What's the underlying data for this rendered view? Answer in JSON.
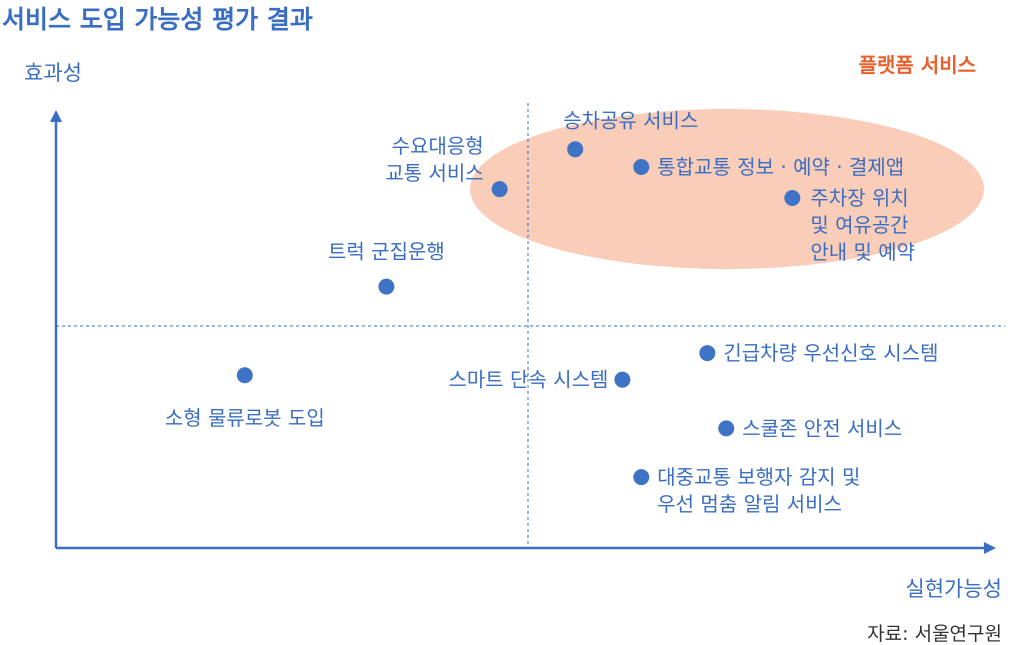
{
  "chart_data": {
    "type": "scatter",
    "title": "서비스 도입 가능성 평가 결과",
    "xlabel": "실현가능성",
    "ylabel": "효과성",
    "group_label": "플랫폼 서비스",
    "source": "자료: 서울연구원",
    "grid": false,
    "colors": {
      "accent": "#3a6ec4",
      "point": "#3f73c6",
      "group_fill": "#f9cdb8",
      "group_label": "#e8612c"
    },
    "points": [
      {
        "label": [
          "수요대응형",
          "교통 서비스"
        ],
        "x": 4.7,
        "y": 8.1,
        "group": true
      },
      {
        "label": [
          "승차공유 서비스"
        ],
        "x": 5.5,
        "y": 9.0,
        "group": true
      },
      {
        "label": [
          "통합교통 정보 · 예약 · 결제앱"
        ],
        "x": 6.2,
        "y": 8.6,
        "group": true
      },
      {
        "label": [
          "주차장 위치",
          "및 여유공간",
          "안내 및 예약"
        ],
        "x": 7.8,
        "y": 7.9,
        "group": true
      },
      {
        "label": [
          "트럭 군집운행"
        ],
        "x": 3.5,
        "y": 5.9,
        "group": false
      },
      {
        "label": [
          "소형 물류로봇 도입"
        ],
        "x": 2.0,
        "y": 3.9,
        "group": false
      },
      {
        "label": [
          "스마트 단속 시스템"
        ],
        "x": 6.0,
        "y": 3.8,
        "group": false
      },
      {
        "label": [
          "긴급차량 우선신호 시스템"
        ],
        "x": 6.9,
        "y": 4.4,
        "group": false
      },
      {
        "label": [
          "스쿨존 안전 서비스"
        ],
        "x": 7.1,
        "y": 2.7,
        "group": false
      },
      {
        "label": [
          "대중교통 보행자 감지 및",
          "우선 멈춤 알림 서비스"
        ],
        "x": 6.2,
        "y": 1.6,
        "group": false
      }
    ]
  }
}
